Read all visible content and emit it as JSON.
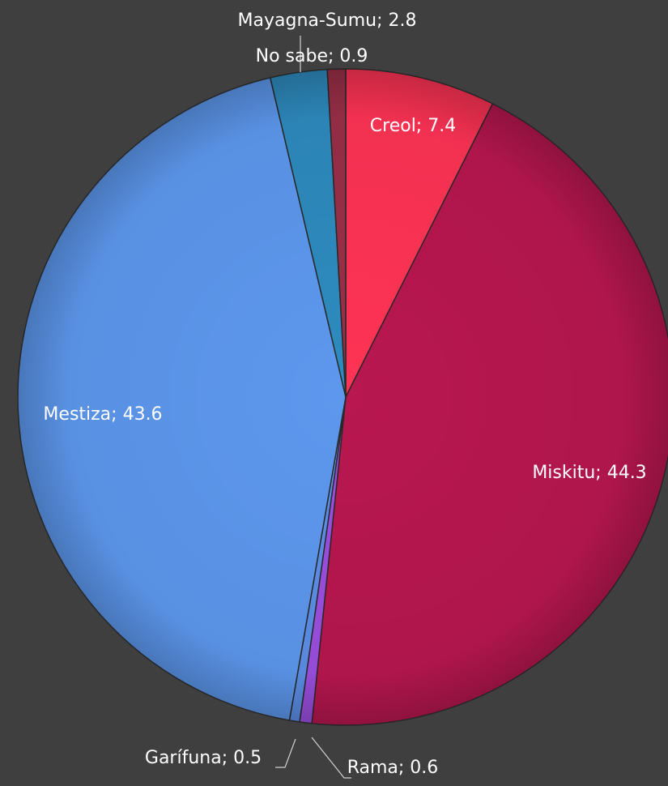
{
  "chart_data": {
    "type": "pie",
    "slices": [
      {
        "label": "Creol",
        "value": 7.4,
        "color": "#ff3355",
        "text": "Creol; 7.4"
      },
      {
        "label": "Miskitu",
        "value": 44.3,
        "color": "#b8174f",
        "text": "Miskitu; 44.3"
      },
      {
        "label": "Rama",
        "value": 0.6,
        "color": "#9c4fe0",
        "text": "Rama; 0.6"
      },
      {
        "label": "Garífuna",
        "value": 0.5,
        "color": "#5d8fe8",
        "text": "Garífuna; 0.5"
      },
      {
        "label": "Mestiza",
        "value": 43.6,
        "color": "#5d98ee",
        "text": "Mestiza; 43.6"
      },
      {
        "label": "Mayagna-Sumu",
        "value": 2.8,
        "color": "#2e8bbf",
        "text": "Mayagna-Sumu; 2.8"
      },
      {
        "label": "No sabe",
        "value": 0.9,
        "color": "#9a2f48",
        "text": "No sabe; 0.9"
      }
    ],
    "start_angle_deg": 0,
    "direction": "clockwise",
    "legend": "none",
    "background": "#3f3f3f",
    "label_color": "#ffffff"
  }
}
